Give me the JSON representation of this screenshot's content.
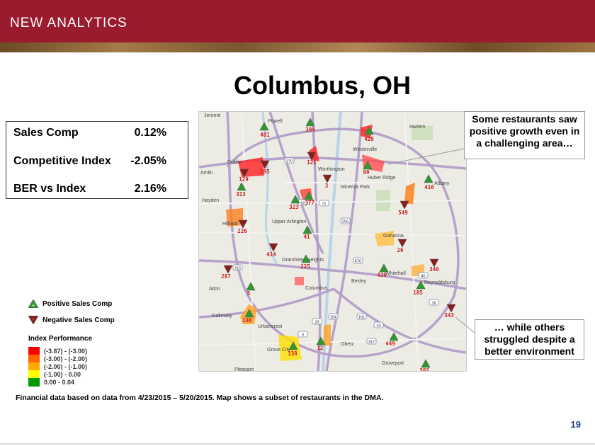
{
  "header": {
    "title": "NEW ANALYTICS"
  },
  "slide": {
    "title": "Columbus, OH"
  },
  "stats": [
    {
      "label": "Sales Comp",
      "value": "0.12%"
    },
    {
      "label": "Competitive Index",
      "value": "-2.05%"
    },
    {
      "label": "BER vs Index",
      "value": "2.16%"
    }
  ],
  "legend": {
    "positive": "Positive Sales Comp",
    "negative": "Negative Sales Comp",
    "index_title": "Index Performance",
    "index_ranges": [
      {
        "label": "(-3.87) - (-3.00)",
        "color": "#ff0000"
      },
      {
        "label": "(-3.00) - (-2.00)",
        "color": "#ff6600"
      },
      {
        "label": "(-2.00) - (-1.00)",
        "color": "#ffaa00"
      },
      {
        "label": "(-1.00) - 0.00",
        "color": "#ffff00"
      },
      {
        "label": "0.00 - 0.04",
        "color": "#009900"
      }
    ]
  },
  "map": {
    "places": [
      "Jerome",
      "Powell",
      "Harlem",
      "Westerville",
      "Dublin",
      "Worthington",
      "Huber Ridge",
      "Albany",
      "Amlin",
      "Minerva Park",
      "Hayden",
      "Hilliard",
      "Upper Arlington",
      "Gahanna",
      "Grandview Heights",
      "Alton",
      "Columbus",
      "Bexley",
      "Whitehall",
      "Reynoldsburg",
      "Galloway",
      "Urbancrest",
      "Grove City",
      "Obetz",
      "Groveport",
      "Pleasant"
    ],
    "restaurants": [
      {
        "id": "481",
        "trend": "positive"
      },
      {
        "id": "394",
        "trend": "positive"
      },
      {
        "id": "428",
        "trend": "positive"
      },
      {
        "id": "121",
        "trend": "negative"
      },
      {
        "id": "195",
        "trend": "negative"
      },
      {
        "id": "99",
        "trend": "positive"
      },
      {
        "id": "129",
        "trend": "negative"
      },
      {
        "id": "3",
        "trend": "negative"
      },
      {
        "id": "416",
        "trend": "positive"
      },
      {
        "id": "313",
        "trend": "positive"
      },
      {
        "id": "323",
        "trend": "positive"
      },
      {
        "id": "377",
        "trend": "positive"
      },
      {
        "id": "549",
        "trend": "negative"
      },
      {
        "id": "226",
        "trend": "negative"
      },
      {
        "id": "41",
        "trend": "positive"
      },
      {
        "id": "26",
        "trend": "negative"
      },
      {
        "id": "414",
        "trend": "negative"
      },
      {
        "id": "225",
        "trend": "positive"
      },
      {
        "id": "287",
        "trend": "negative"
      },
      {
        "id": "436",
        "trend": "positive"
      },
      {
        "id": "340",
        "trend": "negative"
      },
      {
        "id": "5",
        "trend": "positive"
      },
      {
        "id": "185",
        "trend": "positive"
      },
      {
        "id": "148",
        "trend": "positive"
      },
      {
        "id": "343",
        "trend": "negative"
      },
      {
        "id": "449",
        "trend": "positive"
      },
      {
        "id": "138",
        "trend": "positive"
      },
      {
        "id": "12",
        "trend": "positive"
      },
      {
        "id": "302",
        "trend": "positive"
      }
    ],
    "route_shields": [
      "270",
      "315",
      "71",
      "670",
      "33",
      "104",
      "161",
      "16",
      "62",
      "23",
      "40",
      "256",
      "317",
      "3"
    ]
  },
  "callouts": {
    "top": "Some restaurants saw positive growth even in a challenging area…",
    "bottom": "… while others struggled despite a better environment"
  },
  "footnote": "Financial data based on data from 4/23/2015 – 5/20/2015. Map shows a subset of restaurants in the DMA.",
  "page_number": "19",
  "colors": {
    "header": "#9b1b2e",
    "positive_marker": "#2e9a2e",
    "negative_marker": "#8b1d1d",
    "label_red": "#cc1f1f",
    "page_number": "#1f3c88"
  }
}
